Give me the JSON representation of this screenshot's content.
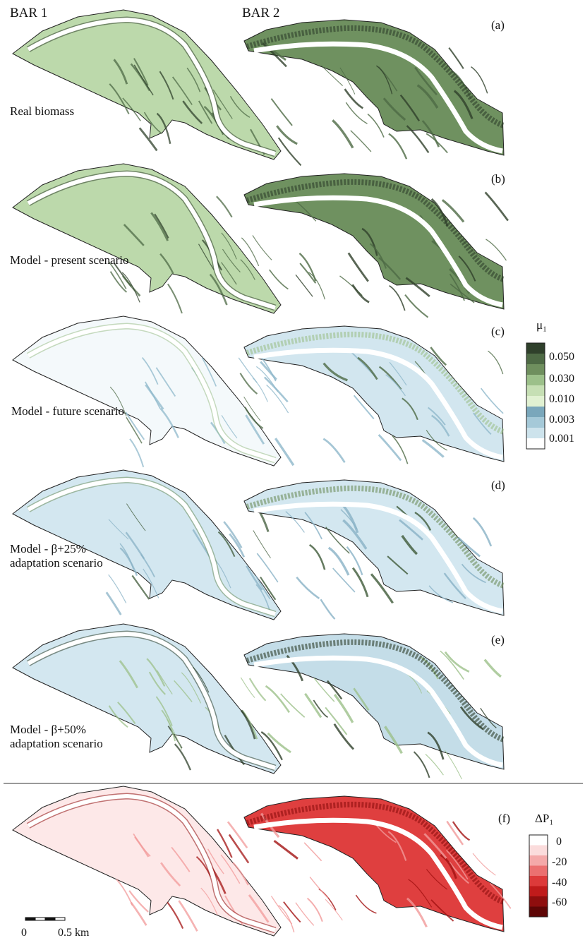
{
  "headers": {
    "bar1": "BAR 1",
    "bar2": "BAR 2"
  },
  "rows": [
    {
      "id": "a",
      "panel": "(a)",
      "label_lines": [
        "Real biomass"
      ],
      "palette": "green_dense"
    },
    {
      "id": "b",
      "panel": "(b)",
      "label_lines": [
        "Model - present scenario"
      ],
      "palette": "green_dense"
    },
    {
      "id": "c",
      "panel": "(c)",
      "label_lines": [
        "Model - future scenario"
      ],
      "palette": "pale_blue"
    },
    {
      "id": "d",
      "panel": "(d)",
      "label_lines": [
        "Model -  β+25%",
        "adaptation scenario"
      ],
      "palette": "blue_green_edges"
    },
    {
      "id": "e",
      "panel": "(e)",
      "label_lines": [
        "Model -  β+50%",
        "adaptation scenario"
      ],
      "palette": "blue_dark_edges"
    },
    {
      "id": "f",
      "panel": "(f)",
      "label_lines": [],
      "palette": "red_change"
    }
  ],
  "legend_mu": {
    "title": "μ₁",
    "colors": [
      "#2f402b",
      "#4e6a45",
      "#6f8f5e",
      "#9cc08a",
      "#c6dfb4",
      "#e1f1d2",
      "#7aa7bb",
      "#a5c9d8",
      "#cde3ec",
      "#ffffff"
    ],
    "ticks": [
      "0.050",
      "0.030",
      "0.010",
      "0.003",
      "0.001"
    ]
  },
  "legend_dp": {
    "title": "ΔP₁",
    "colors": [
      "#ffffff",
      "#fbdcdc",
      "#f4a9a9",
      "#eb7070",
      "#dd3a3a",
      "#c01b1b",
      "#8e0e0e",
      "#5e0606"
    ],
    "ticks": [
      "0",
      "-20",
      "-40",
      "-60"
    ]
  },
  "scale_bar": {
    "label_left": "0",
    "label_right": "0.5 km"
  }
}
